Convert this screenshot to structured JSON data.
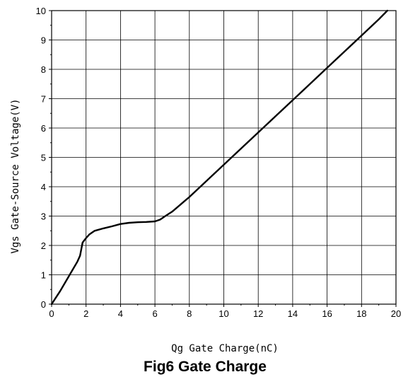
{
  "chart_data": {
    "type": "line",
    "title": "Fig6 Gate Charge",
    "xlabel": "Qg Gate Charge(nC)",
    "ylabel": "Vgs Gate-Source Voltage(V)",
    "xlim": [
      0,
      20
    ],
    "ylim": [
      0,
      10
    ],
    "xticks": [
      "0",
      "2",
      "4",
      "6",
      "8",
      "10",
      "12",
      "14",
      "16",
      "18",
      "20"
    ],
    "yticks": [
      "0",
      "1",
      "2",
      "3",
      "4",
      "5",
      "6",
      "7",
      "8",
      "9",
      "10"
    ],
    "grid": true,
    "series": [
      {
        "x": [
          0,
          0.5,
          1.0,
          1.5,
          1.65,
          1.8,
          2.0,
          2.2,
          2.5,
          3.0,
          3.5,
          4.0,
          4.5,
          5.0,
          5.5,
          6.0,
          6.3,
          6.6,
          7.0,
          8.0,
          9.0,
          10.0,
          11.0,
          12.0,
          13.0,
          14.0,
          15.0,
          16.0,
          17.0,
          18.0,
          19.0,
          19.5
        ],
        "y": [
          0,
          0.45,
          0.95,
          1.45,
          1.65,
          2.1,
          2.25,
          2.38,
          2.5,
          2.58,
          2.65,
          2.73,
          2.77,
          2.79,
          2.8,
          2.82,
          2.88,
          3.0,
          3.15,
          3.65,
          4.2,
          4.75,
          5.3,
          5.85,
          6.4,
          6.95,
          7.5,
          8.05,
          8.6,
          9.15,
          9.7,
          10.0
        ]
      }
    ]
  }
}
